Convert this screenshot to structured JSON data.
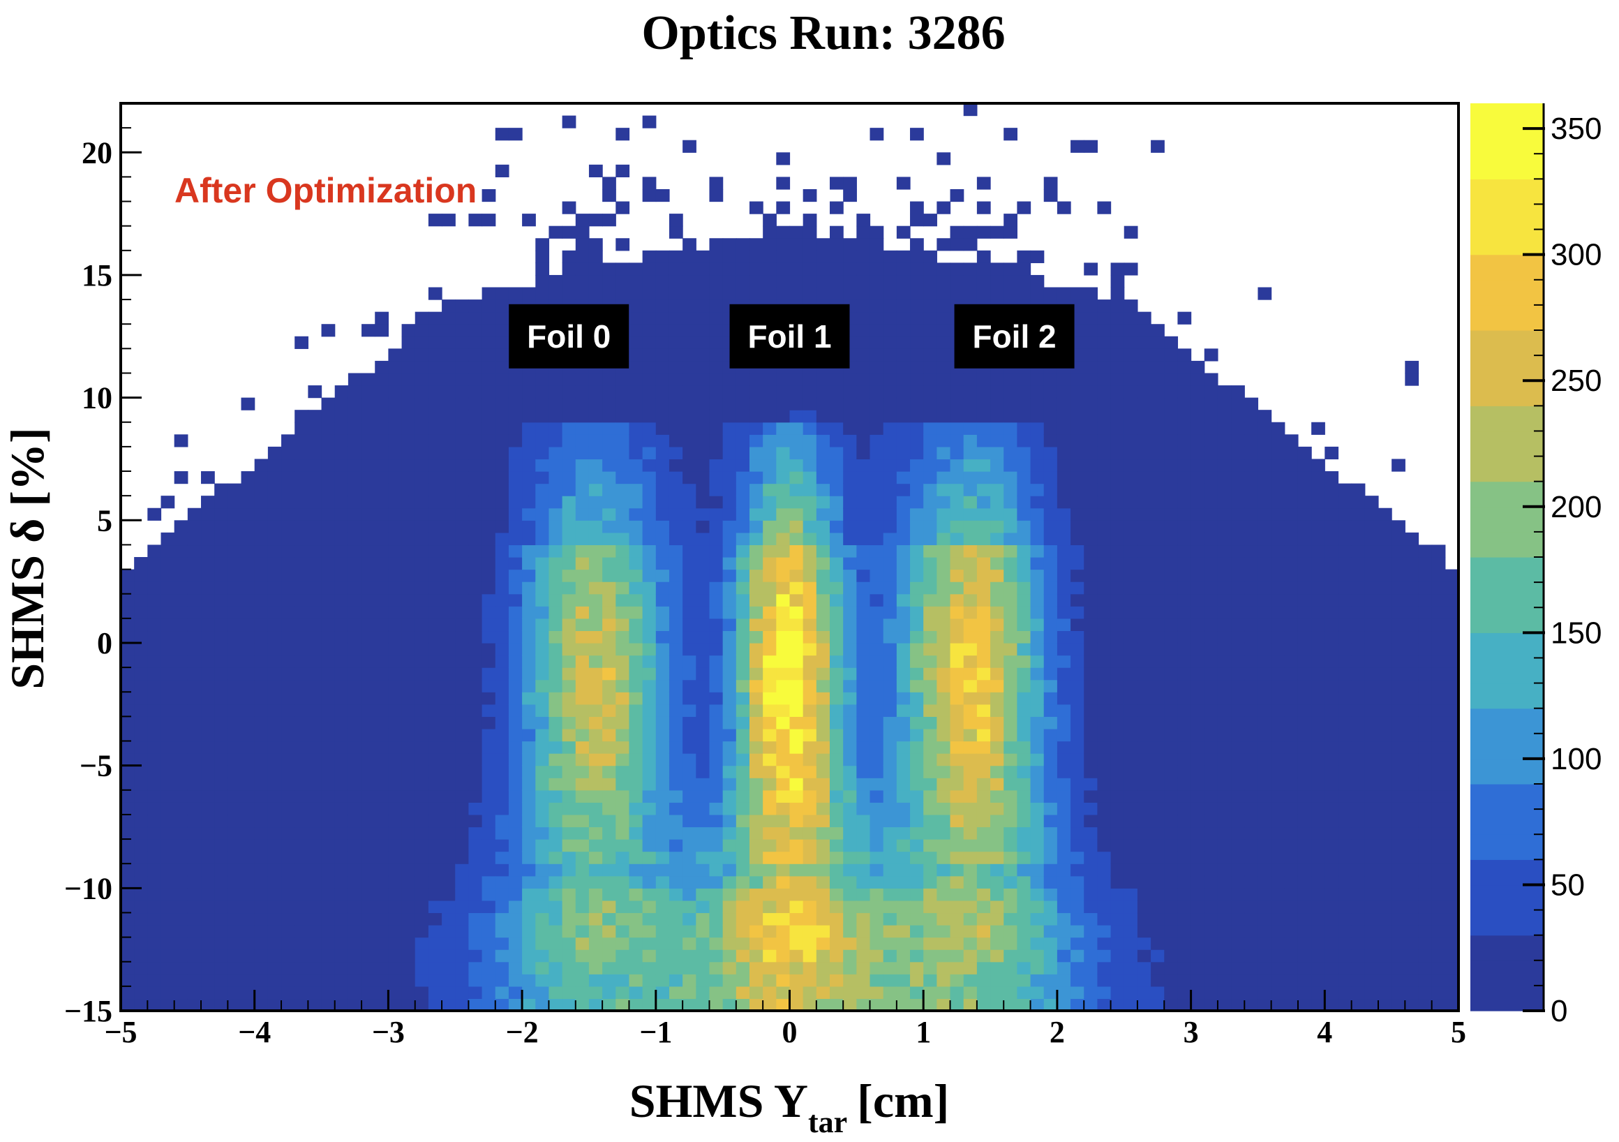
{
  "chart_data": {
    "type": "heatmap",
    "title": "Optics Run: 3286",
    "xlabel": "SHMS Y",
    "xlabel_sub": "tar",
    "xlabel_unit": "[cm]",
    "ylabel": "SHMS  δ [%]",
    "xlim": [
      -5,
      5
    ],
    "ylim": [
      -15,
      22
    ],
    "zlim": [
      0,
      360
    ],
    "x_ticks": [
      -5,
      -4,
      -3,
      -2,
      -1,
      0,
      1,
      2,
      3,
      4,
      5
    ],
    "x_tick_labels": [
      "−5",
      "−4",
      "−3",
      "−2",
      "−1",
      "0",
      "1",
      "2",
      "3",
      "4",
      "5"
    ],
    "y_ticks": [
      -15,
      -10,
      -5,
      0,
      5,
      10,
      15,
      20
    ],
    "y_tick_labels": [
      "−15",
      "−10",
      "−5",
      "0",
      "5",
      "10",
      "15",
      "20"
    ],
    "z_ticks": [
      0,
      50,
      100,
      150,
      200,
      250,
      300,
      350
    ],
    "z_tick_labels": [
      "0",
      "50",
      "100",
      "150",
      "200",
      "250",
      "300",
      "350"
    ],
    "colormap": [
      "#2b3a9b",
      "#2a4fc2",
      "#2f6ed6",
      "#3c95d5",
      "#47b0c4",
      "#5cbba4",
      "#86c285",
      "#b6bf63",
      "#dcbc4e",
      "#f2c443",
      "#f7e43f",
      "#f8fb3c"
    ],
    "annotation": "After Optimization",
    "foil_labels": [
      {
        "text": "Foil 0",
        "x": -1.65,
        "y": 12.5
      },
      {
        "text": "Foil 1",
        "x": 0.0,
        "y": 12.5
      },
      {
        "text": "Foil 2",
        "x": 1.68,
        "y": 12.5
      }
    ],
    "peaks": [
      {
        "name": "Foil 0",
        "y_tar_center": -1.45,
        "peak_counts": 240
      },
      {
        "name": "Foil 1",
        "y_tar_center": 0.0,
        "peak_counts": 350
      },
      {
        "name": "Foil 2",
        "y_tar_center": 1.35,
        "peak_counts": 280
      }
    ],
    "bins": {
      "nx": 100,
      "ny": 74
    },
    "grid": false
  }
}
